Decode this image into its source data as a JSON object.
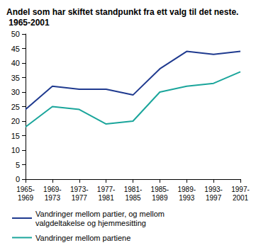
{
  "chart_data": {
    "type": "line",
    "title": "Andel som har skiftet standpunkt fra ett valg til det neste. 1965-2001",
    "categories": [
      "1965-1969",
      "1969-1973",
      "1973-1977",
      "1977-1981",
      "1981-1985",
      "1985-1989",
      "1989-1993",
      "1993-1997",
      "1997-2001"
    ],
    "series": [
      {
        "name": "Vandringer mellom partier, og mellom valgdeltakelse og hjemmesitting",
        "color": "#1f3a8f",
        "values": [
          24,
          32,
          31,
          31,
          29,
          38,
          44,
          43,
          44
        ]
      },
      {
        "name": "Vandringer mellom partiene",
        "color": "#1aa59b",
        "values": [
          18,
          25,
          24,
          19,
          20,
          30,
          32,
          33,
          37
        ]
      }
    ],
    "ylim": [
      0,
      50
    ],
    "yticks": [
      0,
      5,
      10,
      15,
      20,
      25,
      30,
      35,
      40,
      45,
      50
    ],
    "grid": false,
    "legend": "bottom"
  }
}
